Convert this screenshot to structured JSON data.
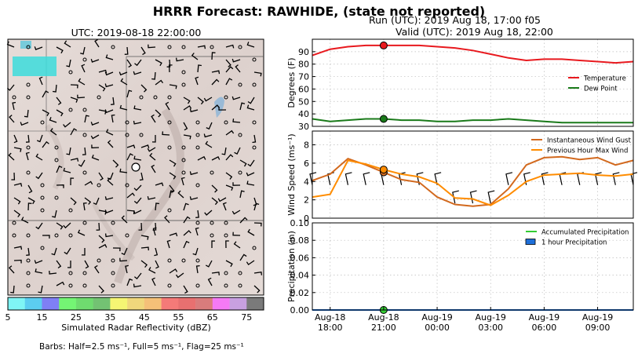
{
  "header": {
    "title": "HRRR Forecast: RAWHIDE, (state not reported)",
    "run": "Run (UTC): 2019 Aug 18, 17:00 f05",
    "valid": "Valid (UTC): 2019 Aug 18, 22:00"
  },
  "map": {
    "title": "UTC: 2019-08-18 22:00:00",
    "colorbar_label": "Simulated Radar Reflectivity (dBZ)",
    "colorbar_ticks": [
      "5",
      "15",
      "25",
      "35",
      "45",
      "55",
      "65",
      "75"
    ],
    "colorbar_colors": [
      "#7ff5f5",
      "#5ccdf0",
      "#7f7ff5",
      "#74f574",
      "#6fdb6f",
      "#73c273",
      "#f5f573",
      "#f0d77c",
      "#f5c078",
      "#f57a78",
      "#e87070",
      "#d97c7c",
      "#f57af5",
      "#c8a0e0",
      "#7a7a7a"
    ],
    "barb_note": "Barbs: Half=2.5 ms⁻¹, Full=5 ms⁻¹, Flag=25 ms⁻¹"
  },
  "chart_data": [
    {
      "type": "line",
      "ylabel": "Degrees (F)",
      "ylim": [
        30,
        100
      ],
      "yticks": [
        30,
        40,
        50,
        60,
        70,
        80,
        90
      ],
      "legend_placement": "right",
      "x_hours_since_start": [
        0,
        1,
        2,
        3,
        4,
        5,
        6,
        7,
        8,
        9,
        10,
        11,
        12,
        13,
        14,
        15,
        16,
        17,
        18
      ],
      "series": [
        {
          "name": "Temperature",
          "color": "#e8191e",
          "values": [
            87,
            92,
            94,
            95,
            95,
            95,
            95,
            94,
            93,
            91,
            88,
            85,
            83,
            84,
            84,
            83,
            82,
            81,
            82
          ]
        },
        {
          "name": "Dew Point",
          "color": "#1a7a1a",
          "values": [
            36,
            34,
            35,
            36,
            36,
            35,
            35,
            34,
            34,
            35,
            35,
            36,
            35,
            34,
            33,
            33,
            33,
            33,
            33
          ]
        }
      ],
      "markers": [
        {
          "x": 4,
          "series": "Temperature"
        },
        {
          "x": 4,
          "series": "Dew Point"
        }
      ],
      "grid": true
    },
    {
      "type": "line",
      "ylabel": "Wind Speed (ms⁻¹)",
      "ylim": [
        0,
        9.5
      ],
      "yticks": [
        0,
        2,
        4,
        6,
        8
      ],
      "legend_placement": "top-right",
      "x_hours_since_start": [
        0,
        1,
        2,
        3,
        4,
        5,
        6,
        7,
        8,
        9,
        10,
        11,
        12,
        13,
        14,
        15,
        16,
        17,
        18
      ],
      "series": [
        {
          "name": "Instantaneous Wind Gust",
          "color": "#d2691e",
          "values": [
            4.1,
            4.8,
            6.5,
            5.8,
            5.0,
            4.2,
            3.9,
            2.3,
            1.5,
            1.3,
            1.5,
            3.2,
            5.8,
            6.6,
            6.7,
            6.4,
            6.6,
            5.8,
            6.3
          ]
        },
        {
          "name": "Previous Hour Max Wind",
          "color": "#ff8c00",
          "values": [
            2.3,
            2.6,
            6.3,
            5.9,
            5.3,
            4.8,
            4.5,
            3.8,
            2.2,
            2.1,
            1.4,
            2.5,
            4.0,
            4.7,
            4.8,
            4.9,
            4.7,
            4.6,
            4.8
          ]
        }
      ],
      "markers": [
        {
          "x": 4,
          "series": "Instantaneous Wind Gust"
        },
        {
          "x": 4,
          "series": "Previous Hour Max Wind"
        }
      ],
      "grid": true
    },
    {
      "type": "line",
      "ylabel": "Precipitation (in)",
      "ylim": [
        0,
        0.1
      ],
      "yticks": [
        "0.00",
        "0.02",
        "0.04",
        "0.06",
        "0.08",
        "0.10"
      ],
      "legend_placement": "top-right",
      "x_hours_since_start": [
        0,
        1,
        2,
        3,
        4,
        5,
        6,
        7,
        8,
        9,
        10,
        11,
        12,
        13,
        14,
        15,
        16,
        17,
        18
      ],
      "series": [
        {
          "name": "Accumulated Precipitation",
          "color": "#33cc33",
          "values": [
            0,
            0,
            0,
            0,
            0,
            0,
            0,
            0,
            0,
            0,
            0,
            0,
            0,
            0,
            0,
            0,
            0,
            0,
            0
          ]
        },
        {
          "name": "1 hour Precipitation",
          "color": "#1e6fd9",
          "values": [
            0,
            0,
            0,
            0,
            0,
            0,
            0,
            0,
            0,
            0,
            0,
            0,
            0,
            0,
            0,
            0,
            0,
            0,
            0
          ]
        }
      ],
      "markers": [
        {
          "x": 4,
          "series": "Accumulated Precipitation"
        }
      ],
      "grid": true
    }
  ],
  "x_ticks": [
    {
      "top": "Aug-18",
      "bottom": "18:00"
    },
    {
      "top": "Aug-18",
      "bottom": "21:00"
    },
    {
      "top": "Aug-19",
      "bottom": "00:00"
    },
    {
      "top": "Aug-19",
      "bottom": "03:00"
    },
    {
      "top": "Aug-19",
      "bottom": "06:00"
    },
    {
      "top": "Aug-19",
      "bottom": "09:00"
    }
  ]
}
